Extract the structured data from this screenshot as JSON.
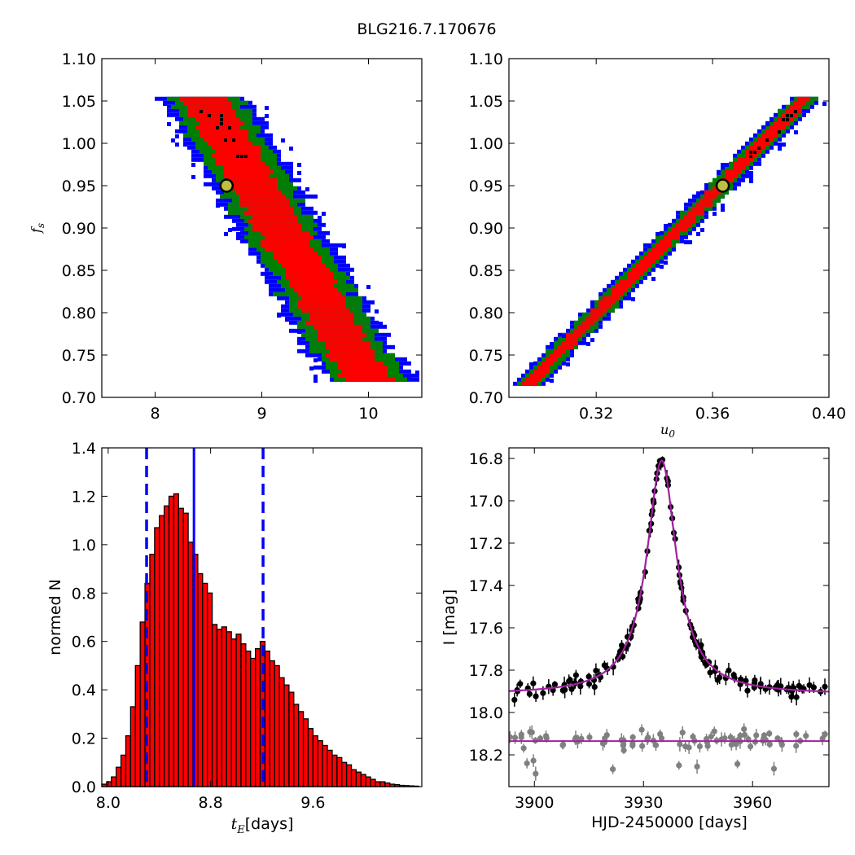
{
  "figure": {
    "title": "BLG216.7.170676"
  },
  "chart_data": [
    {
      "id": "tE-fs",
      "type": "heatmap",
      "xlim": [
        7.5,
        10.5
      ],
      "ylim": [
        0.7,
        1.1
      ],
      "xticks": [
        8,
        9,
        10
      ],
      "xtick_labels": [
        "8",
        "9",
        "10"
      ],
      "yticks": [
        0.7,
        0.75,
        0.8,
        0.85,
        0.9,
        0.95,
        1.0,
        1.05,
        1.1
      ],
      "ytick_labels": [
        "0.70",
        "0.75",
        "0.80",
        "0.85",
        "0.90",
        "0.95",
        "1.00",
        "1.05",
        "1.10"
      ],
      "xlabel": "",
      "ylabel": "f_s",
      "band": {
        "y": [
          0.72,
          1.055
        ],
        "center_x_at_top": 8.45,
        "center_x_at_bottom": 10.0,
        "half_width_red": 0.22,
        "half_width_green": 0.34,
        "half_width_blue": 0.42
      },
      "best_fit": {
        "x": 8.67,
        "y": 0.95
      },
      "colors": {
        "inner": "#ff0000",
        "middle": "#007f00",
        "outer": "#0000ff",
        "best_fit_fill": "#bfbf3f"
      }
    },
    {
      "id": "u0-fs",
      "type": "heatmap",
      "xlim": [
        0.29,
        0.4
      ],
      "ylim": [
        0.7,
        1.1
      ],
      "xticks": [
        0.32,
        0.36,
        0.4
      ],
      "xtick_labels": [
        "0.32",
        "0.36",
        "0.40"
      ],
      "yticks": [
        0.7,
        0.75,
        0.8,
        0.85,
        0.9,
        0.95,
        1.0,
        1.05,
        1.1
      ],
      "ytick_labels": [
        "0.70",
        "0.75",
        "0.80",
        "0.85",
        "0.90",
        "0.95",
        "1.00",
        "1.05",
        "1.10"
      ],
      "xlabel": "u_0",
      "ylabel": "",
      "band": {
        "y": [
          0.715,
          1.055
        ],
        "center_x_at_bottom": 0.2965,
        "center_x_at_top": 0.3925,
        "half_width_red": 0.0025,
        "half_width_green": 0.0042,
        "half_width_blue": 0.0055
      },
      "best_fit": {
        "x": 0.3635,
        "y": 0.95
      },
      "colors": {
        "inner": "#ff0000",
        "middle": "#007f00",
        "outer": "#0000ff",
        "best_fit_fill": "#bfbf3f"
      }
    },
    {
      "id": "tE-hist",
      "type": "bar",
      "xlim": [
        7.95,
        10.45
      ],
      "ylim": [
        0.0,
        1.4
      ],
      "xticks": [
        8.0,
        8.8,
        9.6
      ],
      "xtick_labels": [
        "8.0",
        "8.8",
        "9.6"
      ],
      "yticks": [
        0.0,
        0.2,
        0.4,
        0.6,
        0.8,
        1.0,
        1.2,
        1.4
      ],
      "ytick_labels": [
        "0.0",
        "0.2",
        "0.4",
        "0.6",
        "0.8",
        "1.0",
        "1.2",
        "1.4"
      ],
      "xlabel": "t_E",
      "xlabel_unit": "[days]",
      "ylabel": "normed N",
      "bin_start": 7.95,
      "bin_width": 0.0375,
      "values": [
        0.01,
        0.02,
        0.04,
        0.08,
        0.13,
        0.21,
        0.33,
        0.5,
        0.68,
        0.84,
        0.96,
        1.07,
        1.12,
        1.16,
        1.2,
        1.21,
        1.15,
        1.13,
        1.01,
        0.96,
        0.88,
        0.84,
        0.8,
        0.67,
        0.65,
        0.66,
        0.64,
        0.61,
        0.63,
        0.59,
        0.56,
        0.53,
        0.57,
        0.6,
        0.56,
        0.52,
        0.5,
        0.45,
        0.42,
        0.39,
        0.34,
        0.31,
        0.28,
        0.24,
        0.21,
        0.19,
        0.17,
        0.15,
        0.13,
        0.12,
        0.1,
        0.09,
        0.07,
        0.06,
        0.05,
        0.04,
        0.03,
        0.02,
        0.02,
        0.015,
        0.01,
        0.008,
        0.005,
        0.004,
        0.003,
        0.002
      ],
      "median": 8.67,
      "lower": 8.3,
      "upper": 9.21,
      "colors": {
        "bar": "#ff0000",
        "edge": "#000000",
        "lines": "#0000ff"
      }
    },
    {
      "id": "lightcurve",
      "type": "scatter",
      "xlim": [
        3893,
        3981
      ],
      "ylim": [
        18.35,
        16.75
      ],
      "y_inverted": true,
      "xticks": [
        3900,
        3930,
        3960
      ],
      "xtick_labels": [
        "3900",
        "3930",
        "3960"
      ],
      "yticks": [
        16.8,
        17.0,
        17.2,
        17.4,
        17.6,
        17.8,
        18.0,
        18.2
      ],
      "ytick_labels": [
        "16.8",
        "17.0",
        "17.2",
        "17.4",
        "17.6",
        "17.8",
        "18.0",
        "18.2"
      ],
      "xlabel": "HJD-2450000 [days]",
      "ylabel": "I [mag]",
      "model": {
        "t0": 3935.0,
        "baseline_upper": 17.915,
        "peak_mag": 16.81,
        "tau": 3.9,
        "baseline_lower": 18.135
      },
      "series": [
        {
          "role": "black points",
          "t_range": [
            3893,
            3980
          ],
          "baseline": 17.9,
          "scatter": 0.04
        },
        {
          "role": "grey points",
          "t_range": [
            3893,
            3980
          ],
          "baseline": 18.13,
          "scatter": 0.04
        }
      ],
      "colors": {
        "model": "#a020a0",
        "black_points": "#000000",
        "grey_points": "#808080"
      }
    }
  ]
}
